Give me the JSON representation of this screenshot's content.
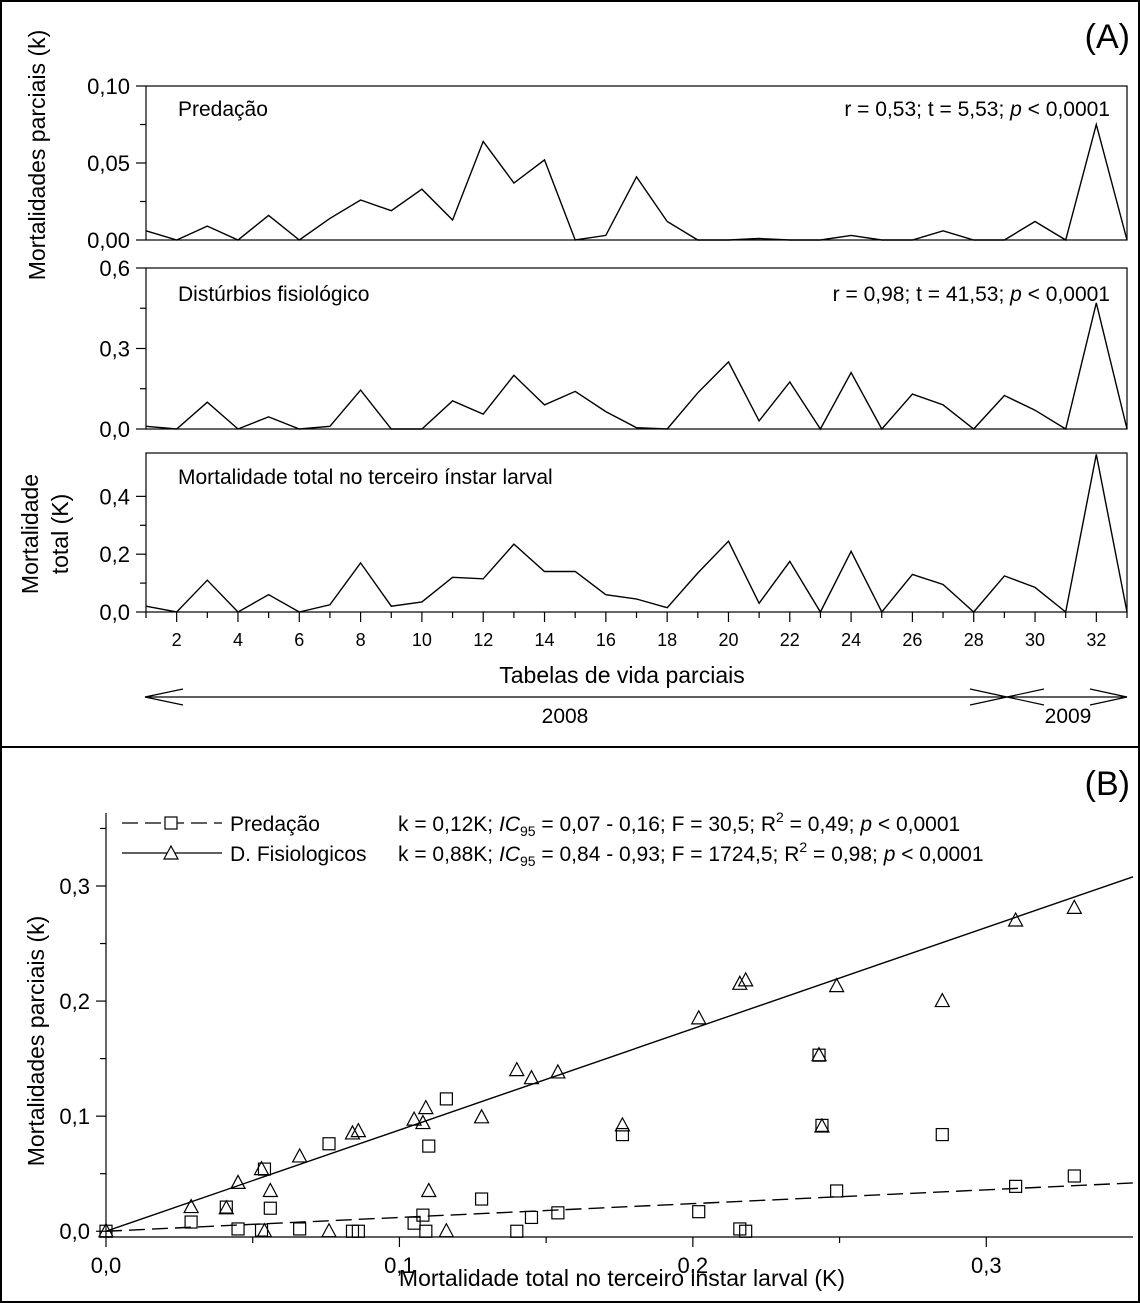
{
  "panel_a": {
    "tag": "(A)",
    "ylabel_partial": "Mortalidades parciais (k)",
    "ylabel_total_line1": "Mortalidade",
    "ylabel_total_line2": "total (K)",
    "xlabel": "Tabelas de vida parciais",
    "year_1": "2008",
    "year_2": "2009"
  },
  "panel_b": {
    "tag": "(B)",
    "ylabel": "Mortalidades parciais (k)",
    "xlabel": "Mortalidade total no terceiro instar larval (K)"
  },
  "chart_data": [
    {
      "id": "predacao_series",
      "type": "line",
      "label": "Predação",
      "stats": {
        "r": "r = 0,53; t = 5,53; ",
        "p": "p",
        "rest": " < 0,0001"
      },
      "ylim": [
        0,
        0.1
      ],
      "yticks": [
        "0,00",
        "0,05",
        "0,10"
      ],
      "x": [
        1,
        2,
        3,
        4,
        5,
        6,
        7,
        8,
        9,
        10,
        11,
        12,
        13,
        14,
        15,
        16,
        17,
        18,
        19,
        20,
        21,
        22,
        23,
        24,
        25,
        26,
        27,
        28,
        29,
        30,
        31,
        32,
        33
      ],
      "values": [
        0.006,
        0.0,
        0.009,
        0.0,
        0.016,
        0.0,
        0.014,
        0.026,
        0.019,
        0.033,
        0.013,
        0.064,
        0.037,
        0.052,
        0.0,
        0.003,
        0.041,
        0.012,
        0.0,
        0.0,
        0.001,
        0.0,
        0.0,
        0.003,
        0.0,
        0.0,
        0.006,
        0.0,
        0.0,
        0.012,
        0.0,
        0.075,
        0.0
      ]
    },
    {
      "id": "disturbios_series",
      "type": "line",
      "label": "Distúrbios fisiológico",
      "stats": {
        "r": "r = 0,98; t = 41,53; ",
        "p": "p",
        "rest": " < 0,0001"
      },
      "ylim": [
        0,
        0.6
      ],
      "yticks": [
        "0,0",
        "0,3",
        "0,6"
      ],
      "x": [
        1,
        2,
        3,
        4,
        5,
        6,
        7,
        8,
        9,
        10,
        11,
        12,
        13,
        14,
        15,
        16,
        17,
        18,
        19,
        20,
        21,
        22,
        23,
        24,
        25,
        26,
        27,
        28,
        29,
        30,
        31,
        32,
        33
      ],
      "values": [
        0.01,
        0.0,
        0.1,
        0.0,
        0.045,
        0.0,
        0.01,
        0.145,
        0.0,
        0.0,
        0.105,
        0.055,
        0.2,
        0.09,
        0.14,
        0.065,
        0.005,
        0.0,
        0.135,
        0.25,
        0.03,
        0.175,
        0.0,
        0.21,
        0.0,
        0.13,
        0.09,
        0.0,
        0.125,
        0.07,
        0.0,
        0.47,
        0.0
      ]
    },
    {
      "id": "total_series",
      "type": "line",
      "label": "Mortalidade total no terceiro ínstar larval",
      "ylim": [
        0,
        0.55
      ],
      "yticks": [
        "0,0",
        "0,2",
        "0,4"
      ],
      "xticks": [
        "2",
        "4",
        "6",
        "8",
        "10",
        "12",
        "14",
        "16",
        "18",
        "20",
        "22",
        "24",
        "26",
        "28",
        "30",
        "32"
      ],
      "x": [
        1,
        2,
        3,
        4,
        5,
        6,
        7,
        8,
        9,
        10,
        11,
        12,
        13,
        14,
        15,
        16,
        17,
        18,
        19,
        20,
        21,
        22,
        23,
        24,
        25,
        26,
        27,
        28,
        29,
        30,
        31,
        32,
        33
      ],
      "values": [
        0.02,
        0.0,
        0.11,
        0.0,
        0.06,
        0.0,
        0.025,
        0.17,
        0.02,
        0.035,
        0.12,
        0.115,
        0.235,
        0.14,
        0.14,
        0.06,
        0.045,
        0.015,
        0.135,
        0.245,
        0.03,
        0.175,
        0.0,
        0.21,
        0.0,
        0.13,
        0.095,
        0.0,
        0.125,
        0.085,
        0.0,
        0.545,
        0.0
      ]
    },
    {
      "id": "regression",
      "type": "scatter",
      "xlim": [
        0,
        0.35
      ],
      "ylim": [
        -0.005,
        0.35
      ],
      "xticks": [
        "0,0",
        "0,1",
        "0,2",
        "0,3"
      ],
      "yticks": [
        "0,0",
        "0,1",
        "0,2",
        "0,3"
      ],
      "series": [
        {
          "name": "Predação",
          "marker": "square",
          "line": "dashed",
          "slope": 0.12,
          "equation": {
            "a": "k = 0,12K; ",
            "ic": "IC",
            "ic_sub": "95",
            "b": " = 0,07 - 0,16; F = 30,5; R",
            "sup": "2",
            "c": " = 0,49; ",
            "p": "p",
            "d": " < 0,0001"
          },
          "points": [
            [
              0,
              0
            ],
            [
              0.029,
              0.008
            ],
            [
              0.041,
              0.021
            ],
            [
              0.045,
              0.002
            ],
            [
              0.053,
              0.001
            ],
            [
              0.054,
              0.054
            ],
            [
              0.056,
              0.02
            ],
            [
              0.066,
              0.002
            ],
            [
              0.076,
              0.076
            ],
            [
              0.084,
              0.0
            ],
            [
              0.086,
              0.0
            ],
            [
              0.105,
              0.007
            ],
            [
              0.108,
              0.014
            ],
            [
              0.109,
              0.0
            ],
            [
              0.11,
              0.074
            ],
            [
              0.116,
              0.115
            ],
            [
              0.128,
              0.028
            ],
            [
              0.14,
              0.0
            ],
            [
              0.145,
              0.012
            ],
            [
              0.154,
              0.016
            ],
            [
              0.176,
              0.084
            ],
            [
              0.202,
              0.017
            ],
            [
              0.216,
              0.002
            ],
            [
              0.218,
              0.0
            ],
            [
              0.243,
              0.153
            ],
            [
              0.244,
              0.092
            ],
            [
              0.249,
              0.035
            ],
            [
              0.285,
              0.084
            ],
            [
              0.31,
              0.039
            ],
            [
              0.33,
              0.048
            ]
          ]
        },
        {
          "name": "D. Fisiologicos",
          "marker": "triangle",
          "line": "solid",
          "slope": 0.88,
          "equation": {
            "a": "k = 0,88K; ",
            "ic": "IC",
            "ic_sub": "95",
            "b": " = 0,84 - 0,93; F = 1724,5; R",
            "sup": "2",
            "c": " = 0,98; ",
            "p": "p",
            "d": " < 0,0001"
          },
          "points": [
            [
              0,
              0
            ],
            [
              0.029,
              0.021
            ],
            [
              0.041,
              0.02
            ],
            [
              0.045,
              0.042
            ],
            [
              0.053,
              0.054
            ],
            [
              0.054,
              0.0
            ],
            [
              0.056,
              0.035
            ],
            [
              0.066,
              0.065
            ],
            [
              0.076,
              0.0
            ],
            [
              0.084,
              0.085
            ],
            [
              0.086,
              0.087
            ],
            [
              0.105,
              0.097
            ],
            [
              0.108,
              0.094
            ],
            [
              0.109,
              0.107
            ],
            [
              0.11,
              0.035
            ],
            [
              0.116,
              0.0
            ],
            [
              0.128,
              0.099
            ],
            [
              0.14,
              0.14
            ],
            [
              0.145,
              0.133
            ],
            [
              0.154,
              0.138
            ],
            [
              0.176,
              0.092
            ],
            [
              0.202,
              0.185
            ],
            [
              0.216,
              0.215
            ],
            [
              0.218,
              0.218
            ],
            [
              0.243,
              0.153
            ],
            [
              0.244,
              0.091
            ],
            [
              0.249,
              0.213
            ],
            [
              0.285,
              0.2
            ],
            [
              0.31,
              0.27
            ],
            [
              0.33,
              0.281
            ]
          ]
        }
      ]
    }
  ]
}
